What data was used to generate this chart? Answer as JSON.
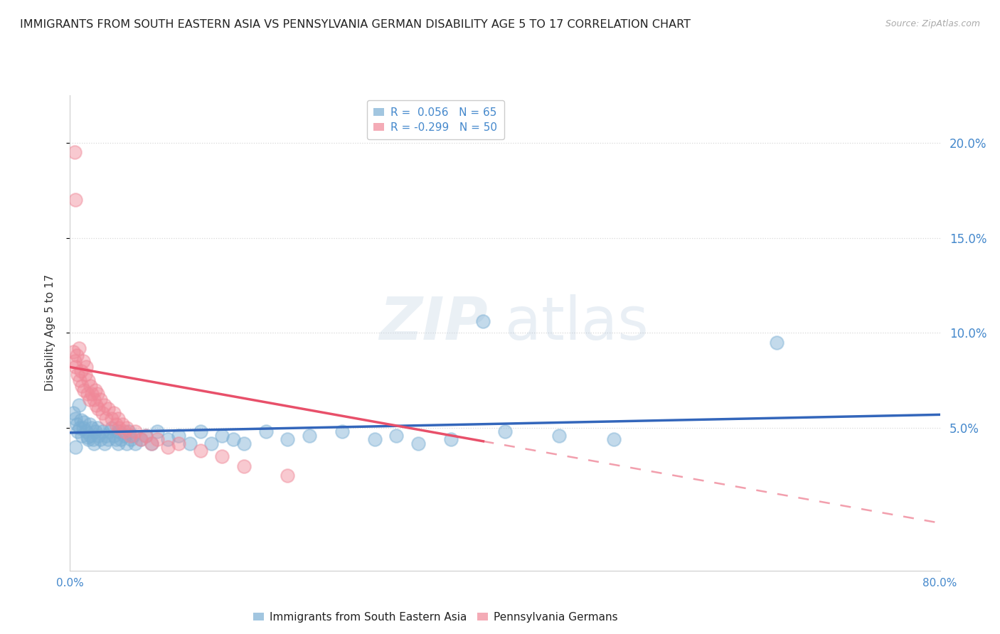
{
  "title": "IMMIGRANTS FROM SOUTH EASTERN ASIA VS PENNSYLVANIA GERMAN DISABILITY AGE 5 TO 17 CORRELATION CHART",
  "source": "Source: ZipAtlas.com",
  "ylabel": "Disability Age 5 to 17",
  "xlim": [
    0.0,
    0.8
  ],
  "ylim": [
    -0.025,
    0.225
  ],
  "ytick_vals": [
    0.05,
    0.1,
    0.15,
    0.2
  ],
  "ytick_labels": [
    "5.0%",
    "10.0%",
    "15.0%",
    "20.0%"
  ],
  "xtick_vals": [
    0.0,
    0.8
  ],
  "xtick_labels": [
    "0.0%",
    "80.0%"
  ],
  "watermark_zip": "ZIP",
  "watermark_atlas": "atlas",
  "background_color": "#ffffff",
  "grid_color": "#d8d8d8",
  "blue_color": "#7bafd4",
  "pink_color": "#f08898",
  "blue_line_color": "#3366bb",
  "pink_line_color": "#e8506a",
  "title_color": "#222222",
  "axis_label_color": "#333333",
  "tick_color": "#4488cc",
  "legend_blue_label": "R =  0.056   N = 65",
  "legend_pink_label": "R = -0.299   N = 50",
  "bottom_blue_label": "Immigrants from South Eastern Asia",
  "bottom_pink_label": "Pennsylvania Germans",
  "blue_line": {
    "x0": 0.0,
    "y0": 0.0475,
    "x1": 0.8,
    "y1": 0.057
  },
  "pink_line_solid": {
    "x0": 0.0,
    "y0": 0.082,
    "x1": 0.38,
    "y1": 0.043
  },
  "pink_line_dash": {
    "x0": 0.38,
    "y0": 0.043,
    "x1": 0.8,
    "y1": 0.0
  },
  "blue_points": [
    [
      0.003,
      0.058
    ],
    [
      0.005,
      0.055
    ],
    [
      0.006,
      0.052
    ],
    [
      0.007,
      0.048
    ],
    [
      0.008,
      0.062
    ],
    [
      0.009,
      0.05
    ],
    [
      0.01,
      0.054
    ],
    [
      0.011,
      0.046
    ],
    [
      0.012,
      0.05
    ],
    [
      0.013,
      0.053
    ],
    [
      0.015,
      0.048
    ],
    [
      0.016,
      0.045
    ],
    [
      0.017,
      0.044
    ],
    [
      0.018,
      0.052
    ],
    [
      0.019,
      0.046
    ],
    [
      0.02,
      0.05
    ],
    [
      0.021,
      0.044
    ],
    [
      0.022,
      0.042
    ],
    [
      0.023,
      0.048
    ],
    [
      0.025,
      0.05
    ],
    [
      0.026,
      0.046
    ],
    [
      0.028,
      0.044
    ],
    [
      0.03,
      0.048
    ],
    [
      0.032,
      0.042
    ],
    [
      0.033,
      0.046
    ],
    [
      0.035,
      0.044
    ],
    [
      0.037,
      0.048
    ],
    [
      0.038,
      0.05
    ],
    [
      0.04,
      0.046
    ],
    [
      0.042,
      0.044
    ],
    [
      0.044,
      0.042
    ],
    [
      0.045,
      0.048
    ],
    [
      0.047,
      0.044
    ],
    [
      0.05,
      0.046
    ],
    [
      0.052,
      0.042
    ],
    [
      0.054,
      0.048
    ],
    [
      0.056,
      0.044
    ],
    [
      0.058,
      0.046
    ],
    [
      0.06,
      0.042
    ],
    [
      0.065,
      0.044
    ],
    [
      0.07,
      0.046
    ],
    [
      0.075,
      0.042
    ],
    [
      0.08,
      0.048
    ],
    [
      0.09,
      0.044
    ],
    [
      0.1,
      0.046
    ],
    [
      0.11,
      0.042
    ],
    [
      0.12,
      0.048
    ],
    [
      0.13,
      0.042
    ],
    [
      0.14,
      0.046
    ],
    [
      0.15,
      0.044
    ],
    [
      0.16,
      0.042
    ],
    [
      0.18,
      0.048
    ],
    [
      0.2,
      0.044
    ],
    [
      0.22,
      0.046
    ],
    [
      0.25,
      0.048
    ],
    [
      0.28,
      0.044
    ],
    [
      0.3,
      0.046
    ],
    [
      0.32,
      0.042
    ],
    [
      0.35,
      0.044
    ],
    [
      0.38,
      0.106
    ],
    [
      0.4,
      0.048
    ],
    [
      0.45,
      0.046
    ],
    [
      0.5,
      0.044
    ],
    [
      0.65,
      0.095
    ],
    [
      0.005,
      0.04
    ]
  ],
  "pink_points": [
    [
      0.003,
      0.09
    ],
    [
      0.004,
      0.085
    ],
    [
      0.005,
      0.082
    ],
    [
      0.006,
      0.088
    ],
    [
      0.007,
      0.078
    ],
    [
      0.008,
      0.092
    ],
    [
      0.009,
      0.075
    ],
    [
      0.01,
      0.08
    ],
    [
      0.011,
      0.072
    ],
    [
      0.012,
      0.085
    ],
    [
      0.013,
      0.07
    ],
    [
      0.014,
      0.078
    ],
    [
      0.015,
      0.082
    ],
    [
      0.016,
      0.068
    ],
    [
      0.017,
      0.075
    ],
    [
      0.018,
      0.065
    ],
    [
      0.019,
      0.072
    ],
    [
      0.02,
      0.068
    ],
    [
      0.022,
      0.065
    ],
    [
      0.023,
      0.07
    ],
    [
      0.024,
      0.062
    ],
    [
      0.025,
      0.068
    ],
    [
      0.026,
      0.06
    ],
    [
      0.028,
      0.065
    ],
    [
      0.03,
      0.058
    ],
    [
      0.032,
      0.062
    ],
    [
      0.033,
      0.055
    ],
    [
      0.035,
      0.06
    ],
    [
      0.038,
      0.055
    ],
    [
      0.04,
      0.058
    ],
    [
      0.042,
      0.052
    ],
    [
      0.044,
      0.055
    ],
    [
      0.045,
      0.05
    ],
    [
      0.048,
      0.052
    ],
    [
      0.05,
      0.048
    ],
    [
      0.052,
      0.05
    ],
    [
      0.055,
      0.046
    ],
    [
      0.06,
      0.048
    ],
    [
      0.065,
      0.044
    ],
    [
      0.07,
      0.046
    ],
    [
      0.075,
      0.042
    ],
    [
      0.08,
      0.044
    ],
    [
      0.09,
      0.04
    ],
    [
      0.1,
      0.042
    ],
    [
      0.12,
      0.038
    ],
    [
      0.14,
      0.035
    ],
    [
      0.16,
      0.03
    ],
    [
      0.2,
      0.025
    ],
    [
      0.004,
      0.195
    ],
    [
      0.005,
      0.17
    ]
  ]
}
